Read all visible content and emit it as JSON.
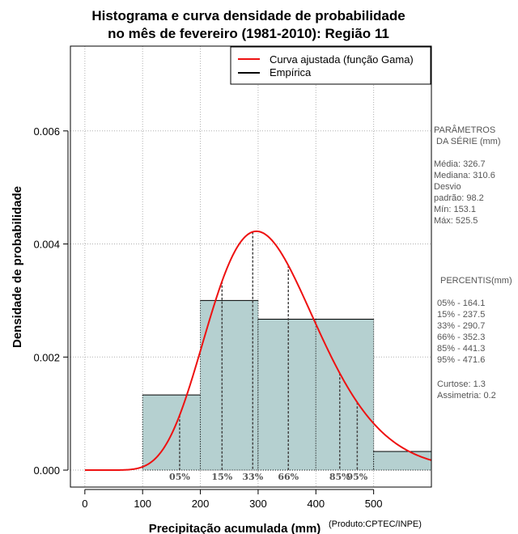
{
  "chart_data": {
    "type": "bar",
    "title_lines": [
      "Histograma e curva densidade de probabilidade",
      "no mês de fevereiro (1981-2010): Região 11"
    ],
    "xlabel": "Precipitação acumulada (mm)",
    "ylabel": "Densidade de probabilidade",
    "credit": "(Produto:CPTEC/INPE)",
    "xlim": [
      -25,
      600
    ],
    "ylim": [
      -0.0003,
      0.0075
    ],
    "x_ticks": [
      0,
      100,
      200,
      300,
      400,
      500
    ],
    "y_ticks": [
      0.0,
      0.002,
      0.004,
      0.006
    ],
    "y_tick_labels": [
      "0.000",
      "0.002",
      "0.004",
      "0.006"
    ],
    "x_grid": [
      0,
      100,
      200,
      300,
      400,
      500,
      600
    ],
    "y_grid": [
      0.0,
      0.002,
      0.004,
      0.006
    ],
    "grid": true,
    "bin_color": "#b5d0d0",
    "curve_color": "#ee1111",
    "histogram": [
      {
        "x0": 100,
        "x1": 200,
        "density": 0.00133
      },
      {
        "x0": 200,
        "x1": 300,
        "density": 0.003
      },
      {
        "x0": 300,
        "x1": 400,
        "density": 0.00267
      },
      {
        "x0": 400,
        "x1": 500,
        "density": 0.00267
      },
      {
        "x0": 500,
        "x1": 600,
        "density": 0.00033
      }
    ],
    "gamma_fit": {
      "mean": 326.7,
      "sd": 98.2
    },
    "percentiles": [
      {
        "label": "05%",
        "value": 164.1
      },
      {
        "label": "15%",
        "value": 237.5
      },
      {
        "label": "33%",
        "value": 290.7
      },
      {
        "label": "66%",
        "value": 352.3
      },
      {
        "label": "85%",
        "value": 441.3
      },
      {
        "label": "95%",
        "value": 471.6
      }
    ],
    "legend": {
      "position": "top-right",
      "entries": [
        {
          "label": "Curva ajustada (função Gama)",
          "color": "#ee1111"
        },
        {
          "label": "Empírica",
          "color": "#000000"
        }
      ]
    }
  },
  "side_panel": {
    "params_header": [
      "PARÂMETROS",
      " DA SÉRIE (mm)"
    ],
    "params": [
      "Média:  326.7",
      "Mediana:  310.6",
      "Desvio",
      "padrão:  98.2",
      "Mín:  153.1",
      "Máx:  525.5"
    ],
    "percentis_header": "PERCENTIS(mm)",
    "percentis": [
      "05% -  164.1",
      "15% -  237.5",
      "33% -  290.7",
      "66% -  352.3",
      "85% -  441.3",
      "95% -  471.6"
    ],
    "stats": [
      "Curtose:  1.3",
      "Assimetria:  0.2"
    ]
  }
}
